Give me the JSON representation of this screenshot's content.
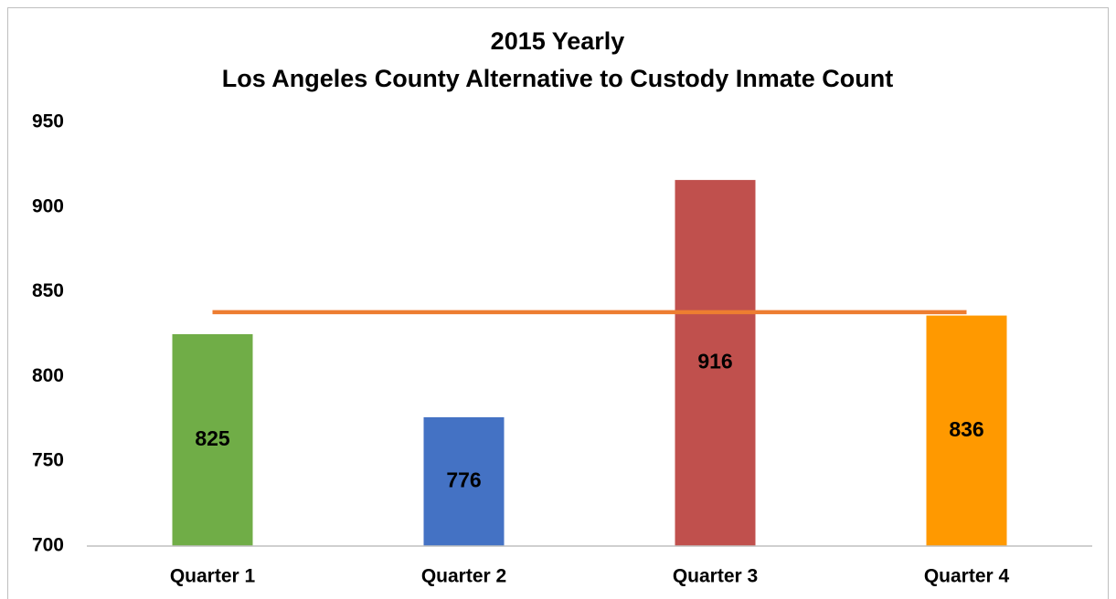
{
  "chart_data": {
    "type": "bar",
    "title": [
      "2015 Yearly",
      "Los Angeles County Alternative to Custody Inmate Count"
    ],
    "categories": [
      "Quarter 1",
      "Quarter 2",
      "Quarter 3",
      "Quarter 4"
    ],
    "values": [
      825,
      776,
      916,
      836
    ],
    "colors": [
      "#70ad47",
      "#4472c4",
      "#c0504d",
      "#ff9900"
    ],
    "hline": {
      "value": 838,
      "color": "#ed7d31"
    },
    "ylim": [
      700,
      950
    ],
    "yticks": [
      700,
      750,
      800,
      850,
      900,
      950
    ],
    "grid": false
  }
}
